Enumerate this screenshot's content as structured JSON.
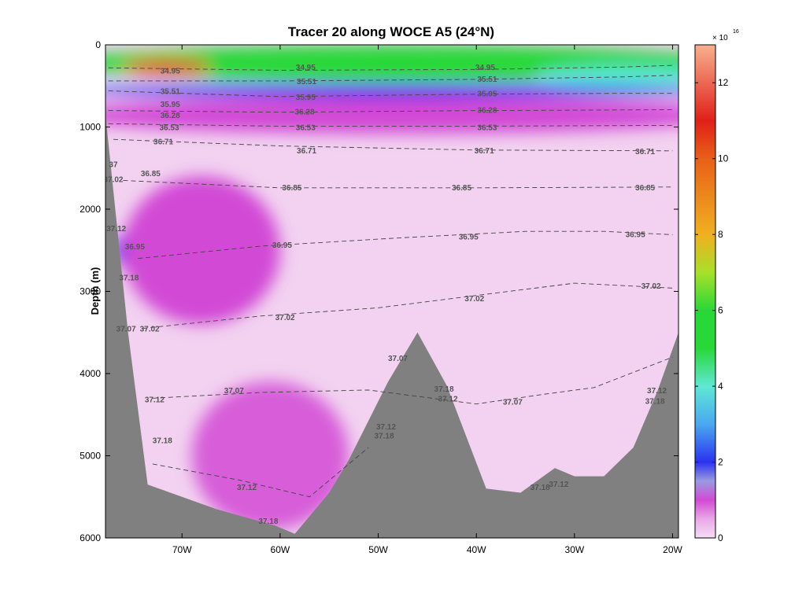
{
  "chart_data": {
    "type": "heatmap",
    "title": "Tracer 20 along WOCE A5 (24°N)",
    "xlabel": "",
    "ylabel": "Depth (m)",
    "xlim": [
      -77.8,
      -19.4
    ],
    "ylim": [
      6000,
      0
    ],
    "x_ticks": [
      {
        "value": -70,
        "label": "70W"
      },
      {
        "value": -60,
        "label": "60W"
      },
      {
        "value": -50,
        "label": "50W"
      },
      {
        "value": -40,
        "label": "40W"
      },
      {
        "value": -30,
        "label": "30W"
      },
      {
        "value": -20,
        "label": "20W"
      }
    ],
    "y_ticks": [
      {
        "value": 0,
        "label": "0"
      },
      {
        "value": 1000,
        "label": "1000"
      },
      {
        "value": 2000,
        "label": "2000"
      },
      {
        "value": 3000,
        "label": "3000"
      },
      {
        "value": 4000,
        "label": "4000"
      },
      {
        "value": 5000,
        "label": "5000"
      },
      {
        "value": 6000,
        "label": "6000"
      }
    ],
    "colorbar": {
      "range": [
        0,
        13
      ],
      "exponent_base": "× 10",
      "exponent_power": "16",
      "ticks": [
        "0",
        "2",
        "4",
        "6",
        "8",
        "10",
        "12"
      ],
      "tick_values": [
        0,
        2,
        4,
        6,
        8,
        10,
        12
      ],
      "stops": [
        {
          "v": 0.0,
          "color": "#f5dcf5"
        },
        {
          "v": 0.5,
          "color": "#e9a8e6"
        },
        {
          "v": 1.0,
          "color": "#d24ad6"
        },
        {
          "v": 1.5,
          "color": "#9a9ae0"
        },
        {
          "v": 2.0,
          "color": "#2a32f0"
        },
        {
          "v": 3.0,
          "color": "#4aa8f0"
        },
        {
          "v": 4.0,
          "color": "#5ee8d4"
        },
        {
          "v": 5.0,
          "color": "#28d838"
        },
        {
          "v": 6.0,
          "color": "#28d838"
        },
        {
          "v": 7.0,
          "color": "#a8e028"
        },
        {
          "v": 8.0,
          "color": "#f0b020"
        },
        {
          "v": 10.0,
          "color": "#e86018"
        },
        {
          "v": 11.0,
          "color": "#e02018"
        },
        {
          "v": 13.0,
          "color": "#f8b090"
        }
      ]
    },
    "bathymetry": [
      {
        "lon": -77.8,
        "depth": 850
      },
      {
        "lon": -75.5,
        "depth": 3500
      },
      {
        "lon": -73.5,
        "depth": 5350
      },
      {
        "lon": -66.5,
        "depth": 5650
      },
      {
        "lon": -60.5,
        "depth": 5850
      },
      {
        "lon": -58.5,
        "depth": 5950
      },
      {
        "lon": -55.0,
        "depth": 5450
      },
      {
        "lon": -53.0,
        "depth": 5050
      },
      {
        "lon": -49.0,
        "depth": 4100
      },
      {
        "lon": -46.0,
        "depth": 3500
      },
      {
        "lon": -43.0,
        "depth": 4150
      },
      {
        "lon": -39.0,
        "depth": 5400
      },
      {
        "lon": -35.5,
        "depth": 5450
      },
      {
        "lon": -32.0,
        "depth": 5150
      },
      {
        "lon": -30.0,
        "depth": 5250
      },
      {
        "lon": -27.0,
        "depth": 5250
      },
      {
        "lon": -24.0,
        "depth": 4900
      },
      {
        "lon": -21.5,
        "depth": 4200
      },
      {
        "lon": -19.4,
        "depth": 3500
      }
    ],
    "tracer_features": [
      {
        "name": "upper-band-green",
        "lon": -48,
        "depth": 220,
        "rlon": 34,
        "rdepth": 220,
        "value": 5.0
      },
      {
        "name": "upper-band-cyan",
        "lon": -25,
        "depth": 380,
        "rlon": 9,
        "rdepth": 120,
        "value": 4.0
      },
      {
        "name": "upper-band-blue",
        "lon": -48,
        "depth": 560,
        "rlon": 34,
        "rdepth": 80,
        "value": 2.0
      },
      {
        "name": "surface-maximum",
        "lon": -71.5,
        "depth": 270,
        "rlon": 4.5,
        "rdepth": 90,
        "value": 11.5
      },
      {
        "name": "thermocline-magenta",
        "lon": -48,
        "depth": 860,
        "rlon": 34,
        "rdepth": 220,
        "value": 1.0
      },
      {
        "name": "deep-western-boundary-maximum",
        "lon": -75,
        "depth": 2500,
        "rlon": 2,
        "rdepth": 220,
        "value": 2.0
      },
      {
        "name": "deep-western-tongue",
        "lon": -68,
        "depth": 2500,
        "rlon": 8,
        "rdepth": 900,
        "value": 1.0
      },
      {
        "name": "abyssal-maximum",
        "lon": -58,
        "depth": 5400,
        "rlon": 4,
        "rdepth": 300,
        "value": 1.3
      },
      {
        "name": "abyssal-magenta",
        "lon": -61,
        "depth": 5000,
        "rlon": 8,
        "rdepth": 900,
        "value": 0.9
      }
    ],
    "isopycnals": [
      {
        "level": "34.95",
        "points": [
          [
            -77.5,
            280
          ],
          [
            -60,
            310
          ],
          [
            -40,
            300
          ],
          [
            -25,
            270
          ],
          [
            -20,
            250
          ]
        ]
      },
      {
        "level": "35.51",
        "points": [
          [
            -77.5,
            440
          ],
          [
            -60,
            440
          ],
          [
            -40,
            420
          ],
          [
            -25,
            390
          ],
          [
            -20,
            370
          ]
        ]
      },
      {
        "level": "35.95",
        "points": [
          [
            -77.5,
            560
          ],
          [
            -60,
            630
          ],
          [
            -40,
            600
          ],
          [
            -25,
            590
          ],
          [
            -20,
            590
          ]
        ]
      },
      {
        "level": "36.28",
        "points": [
          [
            -77.5,
            800
          ],
          [
            -60,
            820
          ],
          [
            -40,
            800
          ],
          [
            -20,
            790
          ]
        ]
      },
      {
        "level": "36.53",
        "points": [
          [
            -77.5,
            960
          ],
          [
            -60,
            990
          ],
          [
            -40,
            990
          ],
          [
            -20,
            980
          ]
        ]
      },
      {
        "level": "36.71",
        "points": [
          [
            -77.0,
            1150
          ],
          [
            -60,
            1230
          ],
          [
            -40,
            1280
          ],
          [
            -20,
            1290
          ]
        ]
      },
      {
        "level": "36.85",
        "points": [
          [
            -76.0,
            1650
          ],
          [
            -60,
            1740
          ],
          [
            -40,
            1740
          ],
          [
            -20,
            1730
          ]
        ]
      },
      {
        "level": "36.95",
        "points": [
          [
            -74.5,
            2600
          ],
          [
            -62,
            2450
          ],
          [
            -48,
            2350
          ],
          [
            -35,
            2270
          ],
          [
            -27,
            2270
          ],
          [
            -20,
            2310
          ]
        ]
      },
      {
        "level": "37.02",
        "points": [
          [
            -74,
            3450
          ],
          [
            -62,
            3300
          ],
          [
            -50,
            3200
          ],
          [
            -40,
            3050
          ],
          [
            -30,
            2900
          ],
          [
            -20,
            2960
          ]
        ]
      },
      {
        "level": "37.07",
        "points": [
          [
            -73,
            4300
          ],
          [
            -62,
            4230
          ],
          [
            -51,
            4200
          ],
          [
            -40,
            4370
          ],
          [
            -33,
            4250
          ],
          [
            -28,
            4170
          ],
          [
            -20,
            3800
          ]
        ]
      },
      {
        "level": "37.12",
        "points": [
          [
            -73,
            5100
          ],
          [
            -64,
            5300
          ],
          [
            -57,
            5500
          ],
          [
            -51,
            4900
          ]
        ]
      }
    ],
    "contour_labels": [
      {
        "text": "34.95",
        "lon": -71.2,
        "depth": 310
      },
      {
        "text": "34.95",
        "lon": -57.4,
        "depth": 270
      },
      {
        "text": "34.95",
        "lon": -39.1,
        "depth": 270
      },
      {
        "text": "35.51",
        "lon": -71.2,
        "depth": 560
      },
      {
        "text": "35.51",
        "lon": -57.3,
        "depth": 440
      },
      {
        "text": "35.51",
        "lon": -38.9,
        "depth": 410
      },
      {
        "text": "35.95",
        "lon": -71.2,
        "depth": 720
      },
      {
        "text": "35.95",
        "lon": -57.4,
        "depth": 630
      },
      {
        "text": "35.95",
        "lon": -38.9,
        "depth": 590
      },
      {
        "text": "36.28",
        "lon": -71.2,
        "depth": 850
      },
      {
        "text": "36.28",
        "lon": -57.5,
        "depth": 810
      },
      {
        "text": "36.28",
        "lon": -38.9,
        "depth": 790
      },
      {
        "text": "36.53",
        "lon": -71.3,
        "depth": 1000
      },
      {
        "text": "36.53",
        "lon": -57.4,
        "depth": 1000
      },
      {
        "text": "36.53",
        "lon": -38.9,
        "depth": 1000
      },
      {
        "text": "36.71",
        "lon": -71.9,
        "depth": 1170
      },
      {
        "text": "36.71",
        "lon": -57.3,
        "depth": 1280
      },
      {
        "text": "36.71",
        "lon": -39.2,
        "depth": 1280
      },
      {
        "text": "36.71",
        "lon": -22.8,
        "depth": 1290
      },
      {
        "text": "37",
        "lon": -77.0,
        "depth": 1450
      },
      {
        "text": "36.85",
        "lon": -73.2,
        "depth": 1560
      },
      {
        "text": "37.02",
        "lon": -77.0,
        "depth": 1630
      },
      {
        "text": "36.85",
        "lon": -58.8,
        "depth": 1730
      },
      {
        "text": "36.85",
        "lon": -41.5,
        "depth": 1730
      },
      {
        "text": "36.85",
        "lon": -22.8,
        "depth": 1730
      },
      {
        "text": "37.12",
        "lon": -76.7,
        "depth": 2230
      },
      {
        "text": "36.95",
        "lon": -40.8,
        "depth": 2330
      },
      {
        "text": "36.95",
        "lon": -23.8,
        "depth": 2300
      },
      {
        "text": "36.95",
        "lon": -74.8,
        "depth": 2450
      },
      {
        "text": "36.95",
        "lon": -59.8,
        "depth": 2430
      },
      {
        "text": "37.18",
        "lon": -75.4,
        "depth": 2830
      },
      {
        "text": "37.02",
        "lon": -59.5,
        "depth": 3310
      },
      {
        "text": "37.02",
        "lon": -40.2,
        "depth": 3080
      },
      {
        "text": "37.02",
        "lon": -22.2,
        "depth": 2930
      },
      {
        "text": "37.07",
        "lon": -75.7,
        "depth": 3450
      },
      {
        "text": "37.02",
        "lon": -73.3,
        "depth": 3450
      },
      {
        "text": "37.07",
        "lon": -48.0,
        "depth": 3810
      },
      {
        "text": "37.07",
        "lon": -64.7,
        "depth": 4200
      },
      {
        "text": "37.18",
        "lon": -43.3,
        "depth": 4180
      },
      {
        "text": "37.12",
        "lon": -42.9,
        "depth": 4300
      },
      {
        "text": "37.07",
        "lon": -36.3,
        "depth": 4340
      },
      {
        "text": "37.12",
        "lon": -72.8,
        "depth": 4310
      },
      {
        "text": "37.12",
        "lon": -21.6,
        "depth": 4200
      },
      {
        "text": "37.18",
        "lon": -21.8,
        "depth": 4330
      },
      {
        "text": "37.12",
        "lon": -49.2,
        "depth": 4640
      },
      {
        "text": "37.18",
        "lon": -49.4,
        "depth": 4750
      },
      {
        "text": "37.18",
        "lon": -72.0,
        "depth": 4810
      },
      {
        "text": "37.12",
        "lon": -63.4,
        "depth": 5380
      },
      {
        "text": "37.12",
        "lon": -31.6,
        "depth": 5340
      },
      {
        "text": "37.18",
        "lon": -33.5,
        "depth": 5380
      },
      {
        "text": "37.18",
        "lon": -61.2,
        "depth": 5790
      }
    ]
  }
}
